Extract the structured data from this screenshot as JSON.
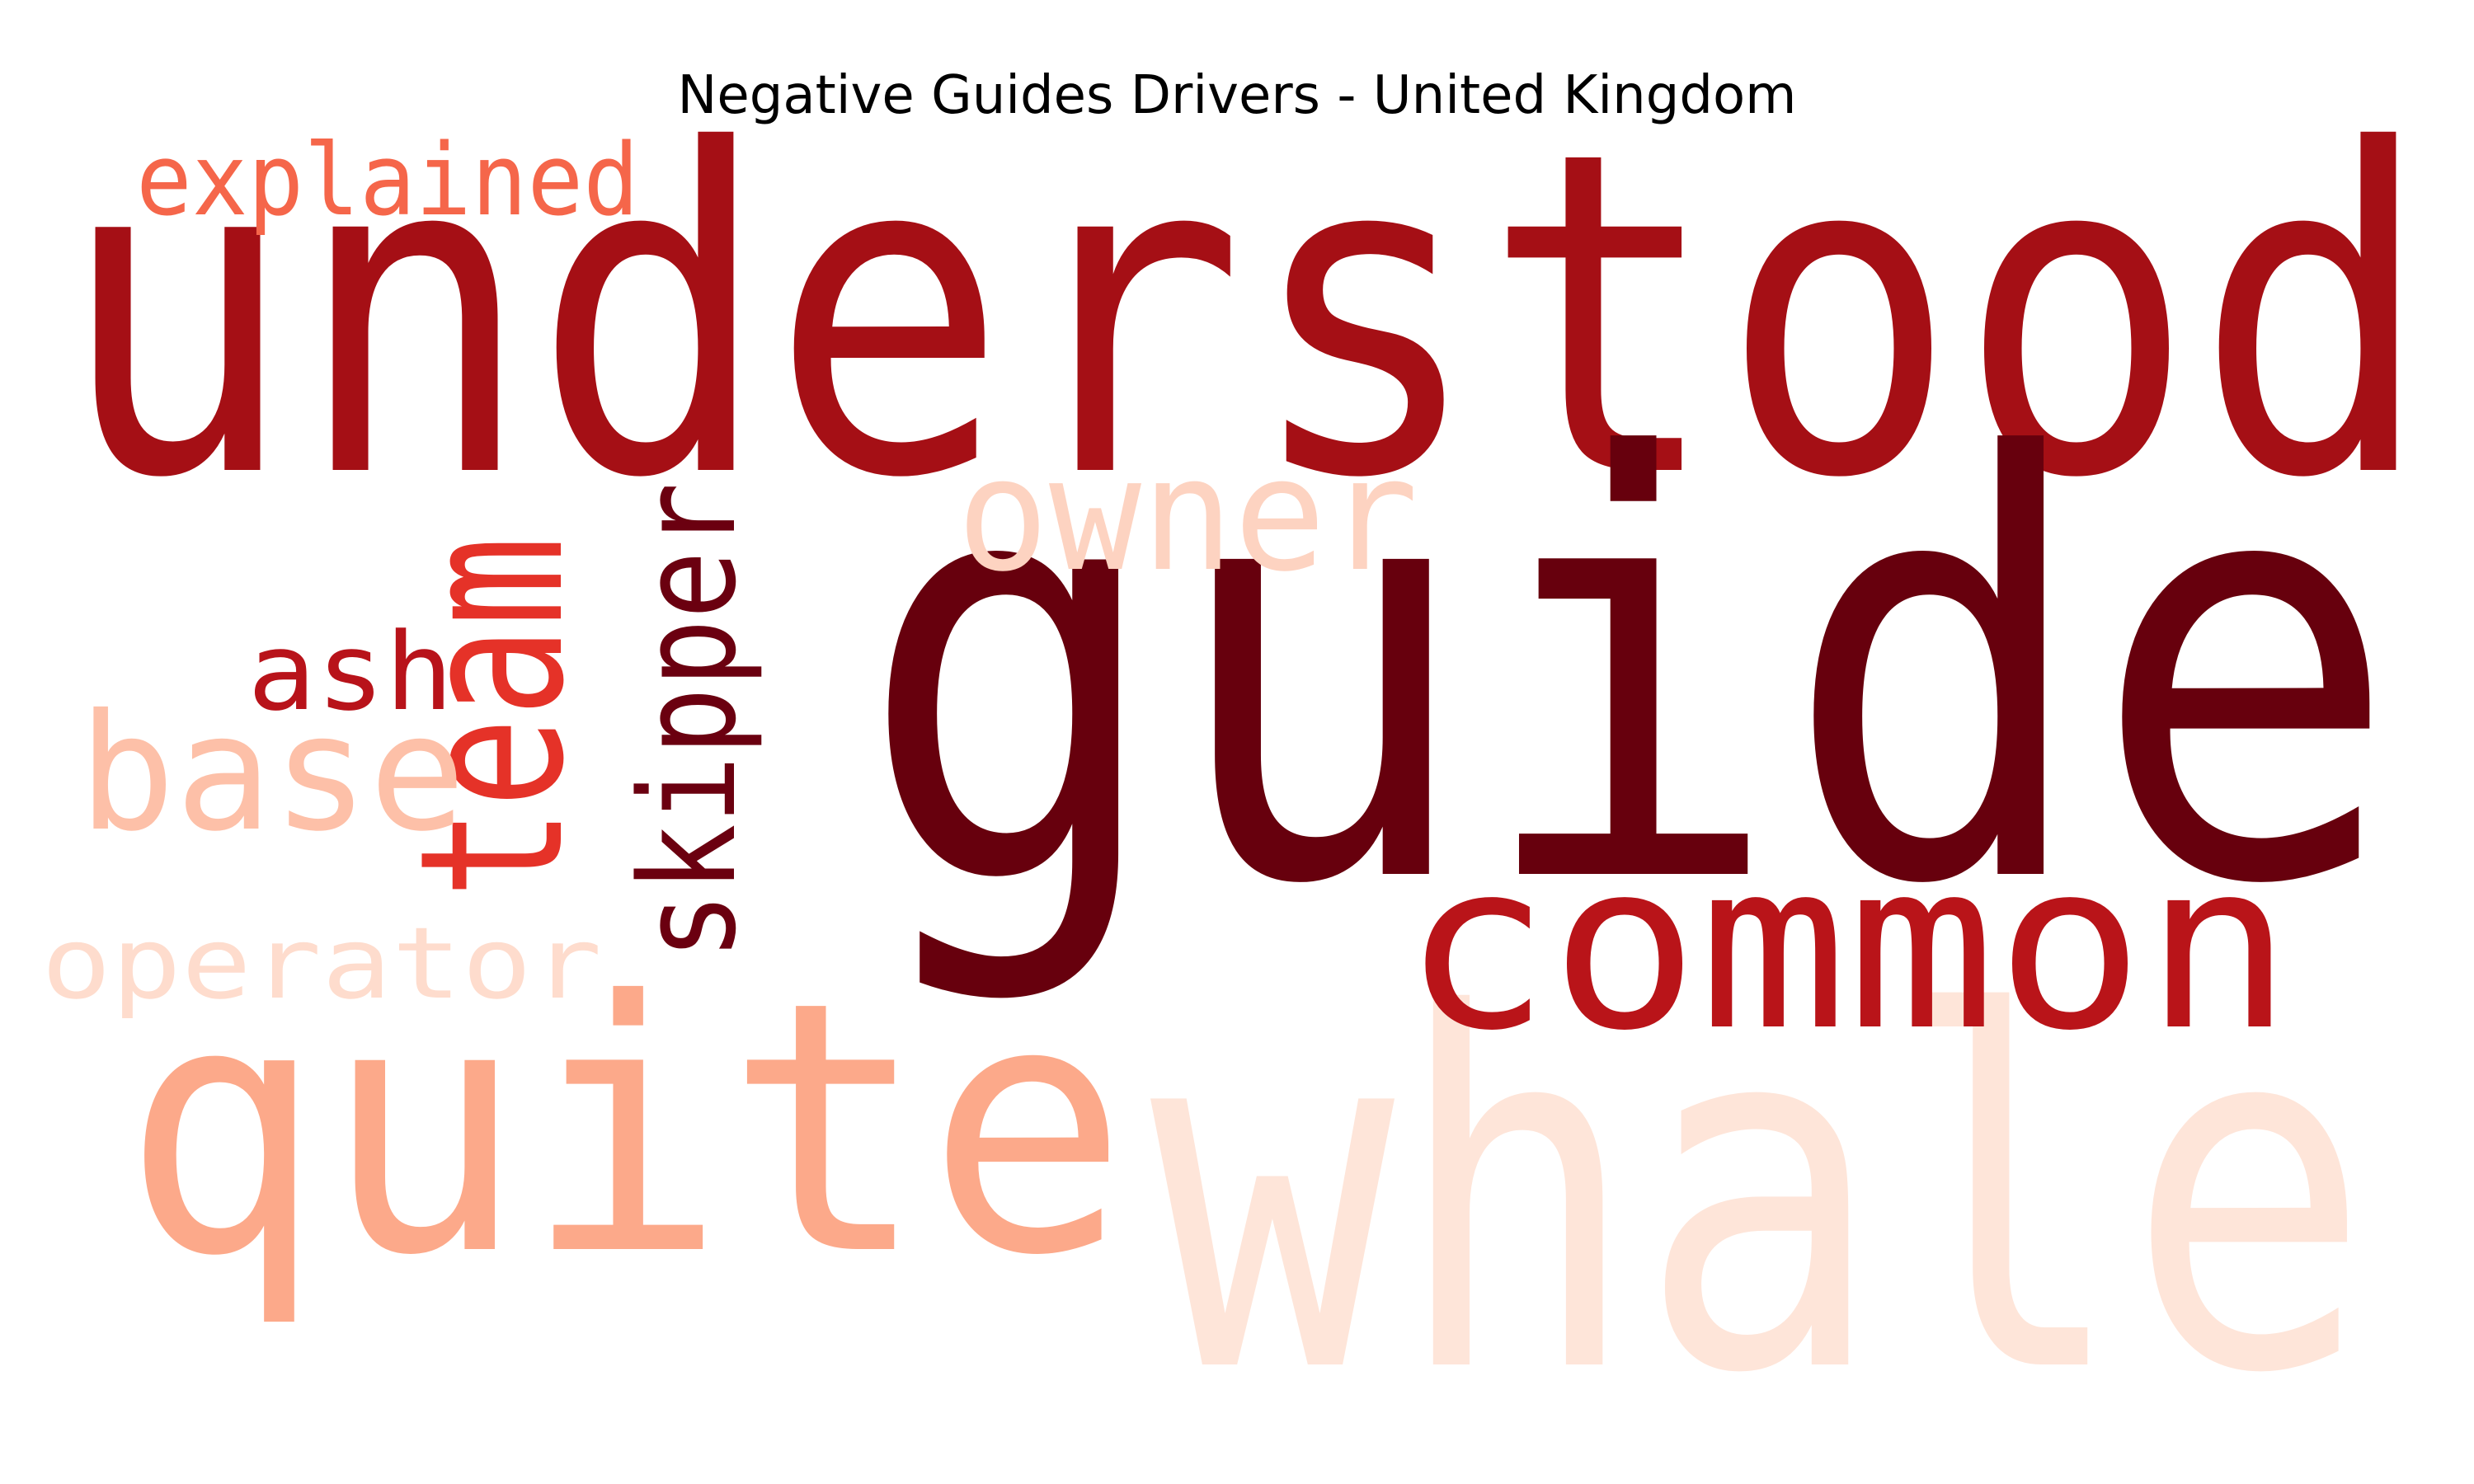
{
  "chart_data": {
    "type": "wordcloud",
    "title": "Negative Guides Drivers - United Kingdom",
    "colormap": "Reds",
    "words": [
      {
        "text": "understood",
        "color": "#a50f15"
      },
      {
        "text": "guide",
        "color": "#67000d"
      },
      {
        "text": "whale",
        "color": "#fee5d9"
      },
      {
        "text": "quite",
        "color": "#fca98a"
      },
      {
        "text": "common",
        "color": "#b91419"
      },
      {
        "text": "owner",
        "color": "#fdd3c1"
      },
      {
        "text": "team",
        "color": "#e53228"
      },
      {
        "text": "skipper",
        "color": "#6b0010"
      },
      {
        "text": "base",
        "color": "#fdc0a8"
      },
      {
        "text": "ash",
        "color": "#b8131a"
      },
      {
        "text": "explained",
        "color": "#f5664a"
      },
      {
        "text": "operator",
        "color": "#fedccd"
      }
    ]
  }
}
